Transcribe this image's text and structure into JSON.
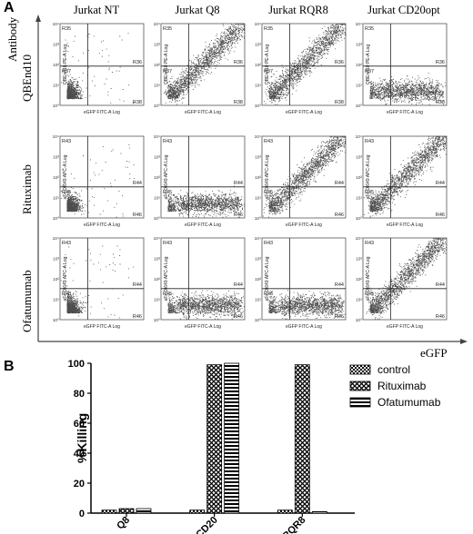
{
  "panel_a": {
    "label": "A",
    "column_headers": [
      "Jurkat NT",
      "Jurkat Q8",
      "Jurkat RQR8",
      "Jurkat CD20opt"
    ],
    "row_labels": [
      "QBEnd10",
      "Rituximab",
      "Ofatumumab"
    ],
    "y_axis_title": "Antibody",
    "x_axis_title": "eGFP",
    "panel_y_axis_labels": [
      "QBEnd10 PE-A Log",
      "aFc DI649 APC-A Log",
      "aFc DI649 APC-A Log"
    ],
    "panel_x_axis_label": "eGFP FITC-A Log",
    "tick_labels": [
      "10⁰",
      "10¹",
      "10²",
      "10³",
      "10⁴"
    ],
    "region_labels": [
      [
        "R35",
        "R36",
        "R37",
        "R38"
      ],
      [
        "R43",
        "R44",
        "R45",
        "R46"
      ],
      [
        "R43",
        "R44",
        "R45",
        "R46"
      ]
    ],
    "plots": [
      [
        "double_negative",
        "diagonal",
        "diagonal",
        "egfp_positive"
      ],
      [
        "double_negative",
        "egfp_positive",
        "diagonal",
        "diagonal"
      ],
      [
        "double_negative",
        "egfp_positive",
        "egfp_positive",
        "diagonal"
      ]
    ]
  },
  "panel_b": {
    "label": "B",
    "chart_data": {
      "type": "bar",
      "categories": [
        "Q8",
        "CD20",
        "RQR8"
      ],
      "series": [
        {
          "name": "control",
          "values": [
            2,
            2,
            2
          ],
          "pattern": "checker"
        },
        {
          "name": "Rituximab",
          "values": [
            3,
            99,
            99
          ],
          "pattern": "crosshatch"
        },
        {
          "name": "Ofatumumab",
          "values": [
            3,
            100,
            1
          ],
          "pattern": "hstripe"
        }
      ],
      "ylabel": "%Killing",
      "xlabel": "",
      "ylim": [
        0,
        100
      ],
      "yticks": [
        "0",
        "20",
        "40",
        "60",
        "80",
        "100"
      ],
      "legend_position": "top-right"
    }
  }
}
